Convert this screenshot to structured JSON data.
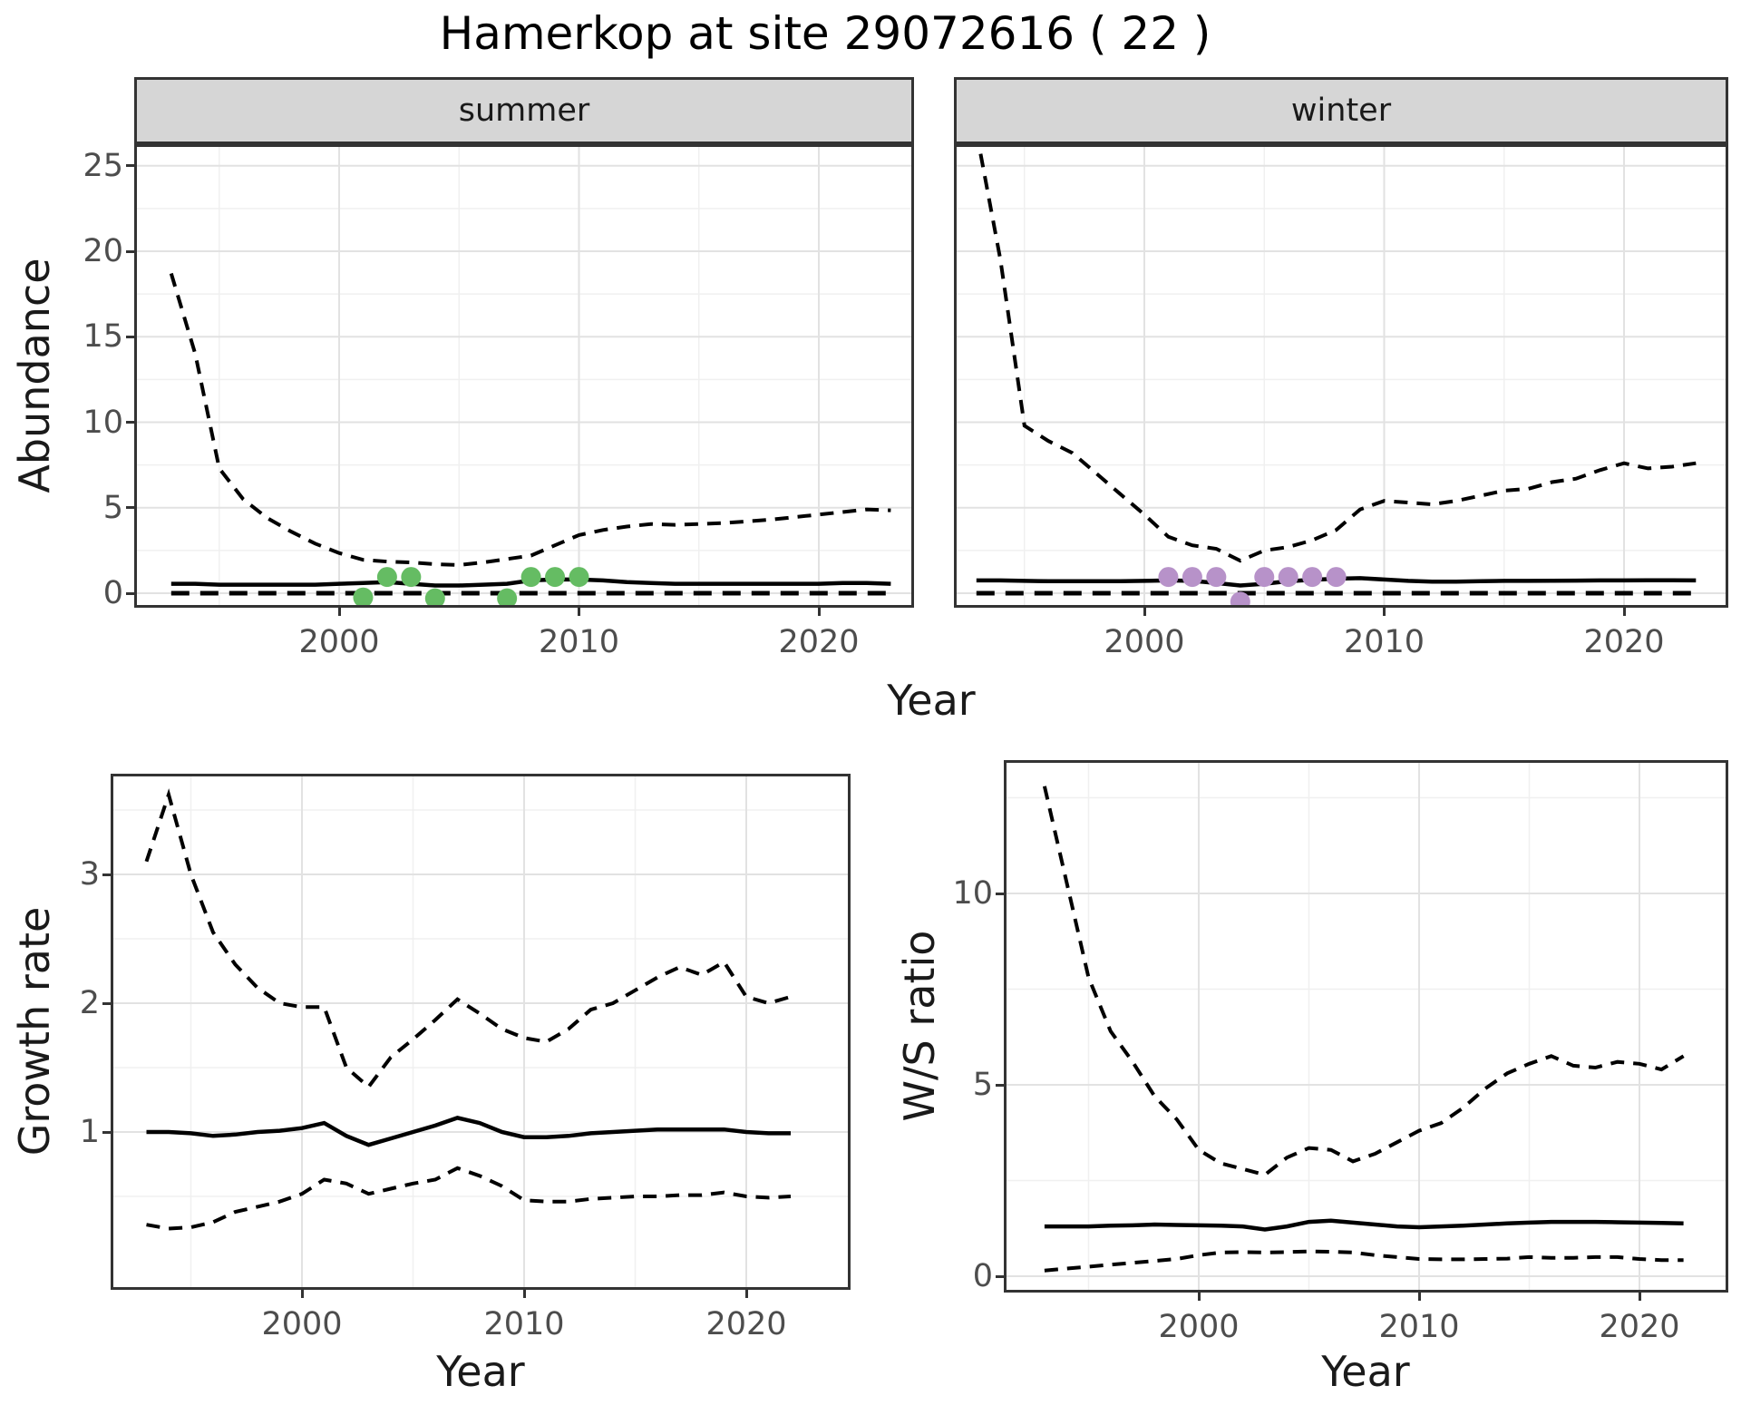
{
  "title": "Hamerkop at site 29072616 ( 22 )",
  "colors": {
    "summer_points": "#65bc63",
    "winter_points": "#b792c9",
    "line": "#000000",
    "strip_bg": "#d6d6d6",
    "panel_border": "#333333",
    "grid_major": "#e2e2e2",
    "grid_minor": "#f0f0f0",
    "tick_text": "#4d4d4d",
    "label_text": "#1a1a1a"
  },
  "chart_data": [
    {
      "id": "abundance_summer",
      "type": "line",
      "facet": "summer",
      "ylabel": "Abundance",
      "xlabel": "Year",
      "x_ticks": [
        2000,
        2010,
        2020
      ],
      "x_minor": [
        1995,
        2005,
        2015
      ],
      "y_ticks": [
        0,
        5,
        10,
        15,
        20,
        25
      ],
      "y_minor": [
        2.5,
        7.5,
        12.5,
        17.5,
        22.5
      ],
      "xlim": [
        1991.5,
        2024.5
      ],
      "ylim": [
        -0.75,
        26.3
      ],
      "grid": true,
      "legend": "none",
      "years": [
        1993,
        1994,
        1995,
        1996,
        1997,
        1998,
        1999,
        2000,
        2001,
        2002,
        2003,
        2004,
        2005,
        2006,
        2007,
        2008,
        2009,
        2010,
        2011,
        2012,
        2013,
        2014,
        2015,
        2016,
        2017,
        2018,
        2019,
        2020,
        2021,
        2022,
        2023
      ],
      "series": [
        {
          "name": "upper_ci_dashed",
          "values": [
            18.7,
            14.0,
            7.3,
            5.5,
            4.4,
            3.6,
            2.9,
            2.35,
            1.95,
            1.85,
            1.8,
            1.7,
            1.65,
            1.8,
            2.0,
            2.2,
            2.8,
            3.4,
            3.7,
            3.9,
            4.05,
            4.0,
            4.05,
            4.1,
            4.2,
            4.3,
            4.45,
            4.6,
            4.75,
            4.9,
            4.85
          ]
        },
        {
          "name": "median_solid",
          "values": [
            0.55,
            0.55,
            0.5,
            0.5,
            0.5,
            0.5,
            0.5,
            0.55,
            0.6,
            0.65,
            0.55,
            0.45,
            0.45,
            0.5,
            0.55,
            0.75,
            0.8,
            0.8,
            0.75,
            0.65,
            0.6,
            0.55,
            0.55,
            0.55,
            0.55,
            0.55,
            0.55,
            0.55,
            0.6,
            0.6,
            0.55
          ]
        },
        {
          "name": "lower_ci_dashed",
          "values": [
            0,
            0,
            0,
            0,
            0,
            0,
            0,
            0,
            0,
            0,
            0,
            0,
            0,
            0,
            0,
            0,
            0,
            0,
            0,
            0,
            0,
            0,
            0,
            0,
            0,
            0,
            0,
            0,
            0,
            0,
            0
          ]
        }
      ],
      "observations": [
        {
          "year": 2001,
          "value": 0,
          "y_plot": -0.25
        },
        {
          "year": 2002,
          "value": 1,
          "y_plot": 0.95
        },
        {
          "year": 2003,
          "value": 1,
          "y_plot": 0.95
        },
        {
          "year": 2004,
          "value": 0,
          "y_plot": -0.3
        },
        {
          "year": 2007,
          "value": 0,
          "y_plot": -0.3
        },
        {
          "year": 2008,
          "value": 1,
          "y_plot": 0.95
        },
        {
          "year": 2009,
          "value": 1,
          "y_plot": 0.95
        },
        {
          "year": 2010,
          "value": 1,
          "y_plot": 0.95
        }
      ],
      "point_color": "#65bc63"
    },
    {
      "id": "abundance_winter",
      "type": "line",
      "facet": "winter",
      "ylabel": "Abundance",
      "xlabel": "Year",
      "x_ticks": [
        2000,
        2010,
        2020
      ],
      "x_minor": [
        1995,
        2005,
        2015
      ],
      "y_ticks": [
        0,
        5,
        10,
        15,
        20,
        25
      ],
      "y_minor": [
        2.5,
        7.5,
        12.5,
        17.5,
        22.5
      ],
      "xlim": [
        1992,
        2024.5
      ],
      "ylim": [
        -0.75,
        26.3
      ],
      "grid": true,
      "legend": "none",
      "years": [
        1993,
        1994,
        1995,
        1996,
        1997,
        1998,
        1999,
        2000,
        2001,
        2002,
        2003,
        2004,
        2005,
        2006,
        2007,
        2008,
        2009,
        2010,
        2011,
        2012,
        2013,
        2014,
        2015,
        2016,
        2017,
        2018,
        2019,
        2020,
        2021,
        2022,
        2023
      ],
      "series": [
        {
          "name": "upper_ci_dashed",
          "values": [
            27.0,
            19.5,
            9.8,
            8.9,
            8.2,
            7.0,
            5.8,
            4.6,
            3.3,
            2.8,
            2.6,
            1.9,
            2.5,
            2.7,
            3.1,
            3.7,
            4.9,
            5.4,
            5.3,
            5.2,
            5.4,
            5.7,
            6.0,
            6.1,
            6.5,
            6.7,
            7.2,
            7.6,
            7.3,
            7.4,
            7.6
          ]
        },
        {
          "name": "median_solid",
          "values": [
            0.75,
            0.75,
            0.72,
            0.7,
            0.7,
            0.7,
            0.7,
            0.72,
            0.75,
            0.72,
            0.6,
            0.45,
            0.55,
            0.7,
            0.78,
            0.85,
            0.88,
            0.8,
            0.72,
            0.68,
            0.68,
            0.7,
            0.72,
            0.72,
            0.73,
            0.74,
            0.75,
            0.75,
            0.76,
            0.76,
            0.75
          ]
        },
        {
          "name": "lower_ci_dashed",
          "values": [
            0,
            0,
            0,
            0,
            0,
            0,
            0,
            0,
            0,
            0,
            0,
            0,
            0,
            0,
            0,
            0,
            0,
            0,
            0,
            0,
            0,
            0,
            0,
            0,
            0,
            0,
            0,
            0,
            0,
            0,
            0
          ]
        }
      ],
      "observations": [
        {
          "year": 2001,
          "value": 1,
          "y_plot": 0.95
        },
        {
          "year": 2002,
          "value": 1,
          "y_plot": 0.95
        },
        {
          "year": 2003,
          "value": 1,
          "y_plot": 0.95
        },
        {
          "year": 2004,
          "value": 0,
          "y_plot": -0.5
        },
        {
          "year": 2005,
          "value": 1,
          "y_plot": 0.95
        },
        {
          "year": 2006,
          "value": 1,
          "y_plot": 0.95
        },
        {
          "year": 2007,
          "value": 1,
          "y_plot": 0.95
        },
        {
          "year": 2008,
          "value": 1,
          "y_plot": 0.95
        }
      ],
      "point_color": "#b792c9"
    },
    {
      "id": "growth_rate",
      "type": "line",
      "facet": null,
      "ylabel": "Growth rate",
      "xlabel": "Year",
      "x_ticks": [
        2000,
        2010,
        2020
      ],
      "x_minor": [
        1995,
        2005,
        2015
      ],
      "y_ticks": [
        1,
        2,
        3
      ],
      "y_minor": [
        0.5,
        1.5,
        2.5,
        3.5
      ],
      "xlim": [
        1991.4,
        2024.7
      ],
      "ylim": [
        -0.22,
        3.78
      ],
      "grid": true,
      "legend": "none",
      "years": [
        1993,
        1994,
        1995,
        1996,
        1997,
        1998,
        1999,
        2000,
        2001,
        2002,
        2003,
        2004,
        2005,
        2006,
        2007,
        2008,
        2009,
        2010,
        2011,
        2012,
        2013,
        2014,
        2015,
        2016,
        2017,
        2018,
        2019,
        2020,
        2021,
        2022
      ],
      "series": [
        {
          "name": "upper_ci_dashed",
          "values": [
            3.1,
            3.62,
            3.0,
            2.55,
            2.3,
            2.12,
            2.0,
            1.97,
            1.97,
            1.5,
            1.35,
            1.58,
            1.72,
            1.87,
            2.03,
            1.92,
            1.8,
            1.73,
            1.7,
            1.8,
            1.95,
            2.0,
            2.1,
            2.2,
            2.28,
            2.22,
            2.32,
            2.05,
            2.0,
            2.05
          ]
        },
        {
          "name": "median_solid",
          "values": [
            1.0,
            1.0,
            0.99,
            0.97,
            0.98,
            1.0,
            1.01,
            1.03,
            1.07,
            0.97,
            0.9,
            0.95,
            1.0,
            1.05,
            1.11,
            1.07,
            1.0,
            0.96,
            0.96,
            0.97,
            0.99,
            1.0,
            1.01,
            1.02,
            1.02,
            1.02,
            1.02,
            1.0,
            0.99,
            0.99
          ]
        },
        {
          "name": "lower_ci_dashed",
          "values": [
            0.28,
            0.25,
            0.26,
            0.3,
            0.38,
            0.42,
            0.46,
            0.52,
            0.63,
            0.6,
            0.52,
            0.56,
            0.6,
            0.63,
            0.72,
            0.66,
            0.58,
            0.47,
            0.46,
            0.46,
            0.48,
            0.49,
            0.5,
            0.5,
            0.51,
            0.51,
            0.53,
            0.5,
            0.49,
            0.5
          ]
        }
      ],
      "observations": [],
      "point_color": null
    },
    {
      "id": "ws_ratio",
      "type": "line",
      "facet": null,
      "ylabel": "W/S ratio",
      "xlabel": "Year",
      "x_ticks": [
        2000,
        2010,
        2020
      ],
      "x_minor": [
        1995,
        2005,
        2015
      ],
      "y_ticks": [
        0,
        5,
        10
      ],
      "y_minor": [
        2.5,
        7.5,
        12.5
      ],
      "xlim": [
        1991.2,
        2024.0
      ],
      "ylim": [
        -0.43,
        13.5
      ],
      "grid": true,
      "legend": "none",
      "years": [
        1993,
        1994,
        1995,
        1996,
        1997,
        1998,
        1999,
        2000,
        2001,
        2002,
        2003,
        2004,
        2005,
        2006,
        2007,
        2008,
        2009,
        2010,
        2011,
        2012,
        2013,
        2014,
        2015,
        2016,
        2017,
        2018,
        2019,
        2020,
        2021,
        2022
      ],
      "series": [
        {
          "name": "upper_ci_dashed",
          "values": [
            12.8,
            10.3,
            7.8,
            6.4,
            5.6,
            4.7,
            4.1,
            3.3,
            2.95,
            2.8,
            2.65,
            3.1,
            3.35,
            3.3,
            3.0,
            3.2,
            3.5,
            3.8,
            4.0,
            4.4,
            4.9,
            5.3,
            5.55,
            5.75,
            5.5,
            5.45,
            5.6,
            5.55,
            5.4,
            5.75
          ]
        },
        {
          "name": "median_solid",
          "values": [
            1.3,
            1.3,
            1.3,
            1.32,
            1.33,
            1.35,
            1.34,
            1.33,
            1.32,
            1.3,
            1.22,
            1.3,
            1.42,
            1.45,
            1.4,
            1.35,
            1.3,
            1.28,
            1.3,
            1.32,
            1.35,
            1.38,
            1.4,
            1.42,
            1.42,
            1.42,
            1.41,
            1.4,
            1.39,
            1.38
          ]
        },
        {
          "name": "lower_ci_dashed",
          "values": [
            0.15,
            0.2,
            0.25,
            0.3,
            0.35,
            0.4,
            0.45,
            0.55,
            0.62,
            0.63,
            0.62,
            0.63,
            0.65,
            0.64,
            0.62,
            0.55,
            0.5,
            0.45,
            0.44,
            0.44,
            0.45,
            0.46,
            0.5,
            0.48,
            0.48,
            0.5,
            0.5,
            0.45,
            0.42,
            0.42
          ]
        }
      ],
      "observations": [],
      "point_color": null
    }
  ]
}
